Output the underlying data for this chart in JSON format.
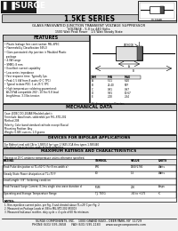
{
  "title": "1.5KE SERIES",
  "subtitle1": "GLASS PASSIVATED JUNCTION TRANSIENT VOLTAGE SUPPRESSOR",
  "subtitle2": "VOLTAGE - 5.0 to 440 Volts",
  "subtitle3": "1500 Watt Peak Power    1.5 Watt Steady State",
  "features_title": "FEATURES",
  "mech_title": "MECHANICAL DATA",
  "bipolar_title": "DEVICES FOR BIPOLAR APPLICATIONS",
  "bipolar_text1": "For Bidirectional add CA to 1.5KE5.0 for type 1.5KE5.0CA thru types 1.5KE440",
  "bipolar_text2": "Electrical characteristics apply at both polarities",
  "ratings_title": "MAXIMUM RATINGS AND CHARACTERISTICS",
  "ratings_note": "Ratings at 25°C ambient temperature unless otherwise specified.",
  "col_headers": [
    "RATING",
    "SYMBOL",
    "VALUE",
    "UNITS"
  ],
  "table_data": [
    [
      "Peak Pulse dissipation at TL=50°C (For 8 ms width a)",
      "PPK",
      "1500/1700",
      "Watts"
    ],
    [
      "Steady State Power dissipation at TL=75°F",
      "PD",
      "1.5",
      "Watts"
    ],
    [
      "Lead Length: 3/8\", Soldering condition",
      "",
      "",
      ""
    ],
    [
      "Peak Forward Surge Current: 8.3ms single sine-wave duration d",
      "IFSM",
      "200",
      "Amps"
    ],
    [
      "Operating and Storage Temperature Range",
      "TJ, TSTG",
      "-65 to +175",
      "°C"
    ]
  ],
  "notes": [
    "1. Non-repetitive current pulse, per Fig. 3 and derated above TL=25°C per Fig. 2",
    "2. Measured on Package Leads at 3/8 to MIL-STD 202 SP2003",
    "3. Measured half-wave rectifier, duty cycle = 4 cycle of 60 Hz minimum"
  ],
  "footer1": "SURGE COMPONENTS, INC.    1000 GRAND BLVD., DEER PARK, NY  11729",
  "footer2": "PHONE (631) 595-3658      FAX (631) 595-1183      www.surgecomponents.com",
  "feat_lines": [
    "Plastic leakage free construction: MIL-SPEC",
    "Flammability Classification 94V-0",
    "Glass passivated chip junction in Moulded Plastic",
    "  package",
    "4.0W range",
    "SMBG: 8 mm",
    "Excellent current capability",
    "Low series impedance",
    "Fast response time: Typically 1ps",
    "Peak 1.5 kW from 8 watts (0°C TPC)",
    "Typical to date POC: 1 at 25°C YPC",
    "High temperature soldering guaranteed:",
    "  WLCS/VA compatible 260°, 10 Sec/5.8 lead",
    "  length/max. 3.3 lbs tension"
  ],
  "mech_lines": [
    "Case: JEDEC DO-204AB Moulded plastic",
    "Terminals: Axial leads, solderable per MIL-STD-202",
    "Method 208",
    "Polarity: Color band standard cathode except Biaxial",
    "Mounting Position: Any",
    "Weight: 0.845 ounces, 1.0 grams"
  ],
  "bg_color": "#f0f0f0",
  "white": "#ffffff",
  "black": "#000000",
  "gray_header": "#c8c8c8",
  "gray_light": "#e8e8e8"
}
